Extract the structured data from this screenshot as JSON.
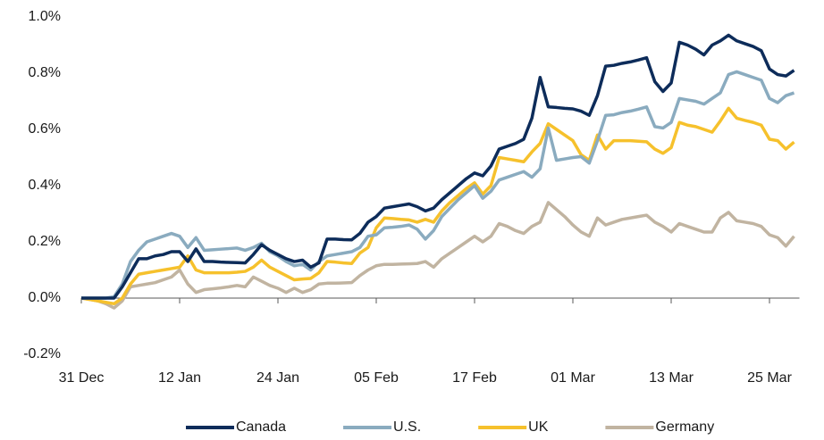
{
  "chart_data": {
    "type": "line",
    "categories": [
      "31 Dec",
      null,
      null,
      null,
      null,
      null,
      null,
      null,
      null,
      null,
      null,
      null,
      "12 Jan",
      null,
      null,
      null,
      null,
      null,
      null,
      null,
      null,
      null,
      null,
      null,
      "24 Jan",
      null,
      null,
      null,
      null,
      null,
      null,
      null,
      null,
      null,
      null,
      null,
      "05 Feb",
      null,
      null,
      null,
      null,
      null,
      null,
      null,
      null,
      null,
      null,
      null,
      "17 Feb",
      null,
      null,
      null,
      null,
      null,
      null,
      null,
      null,
      null,
      null,
      null,
      "01 Mar",
      null,
      null,
      null,
      null,
      null,
      null,
      null,
      null,
      null,
      null,
      null,
      "13 Mar",
      null,
      null,
      null,
      null,
      null,
      null,
      null,
      null,
      null,
      null,
      null,
      "25 Mar",
      null,
      null,
      null
    ],
    "series": [
      {
        "name": "Canada",
        "color": "#0d2c5a",
        "values": [
          0,
          0,
          0,
          0,
          0,
          0.04,
          0.09,
          0.14,
          0.14,
          0.15,
          0.155,
          0.165,
          0.165,
          0.13,
          0.175,
          0.13,
          0.13,
          0.128,
          0.127,
          0.126,
          0.125,
          0.155,
          0.19,
          0.17,
          0.155,
          0.14,
          0.13,
          0.135,
          0.11,
          0.125,
          0.21,
          0.21,
          0.208,
          0.207,
          0.23,
          0.27,
          0.29,
          0.32,
          0.325,
          0.33,
          0.335,
          0.325,
          0.31,
          0.32,
          0.35,
          0.375,
          0.4,
          0.425,
          0.445,
          0.435,
          0.47,
          0.53,
          0.54,
          0.55,
          0.565,
          0.64,
          0.785,
          0.68,
          0.678,
          0.675,
          0.673,
          0.665,
          0.65,
          0.72,
          0.825,
          0.828,
          0.835,
          0.84,
          0.847,
          0.855,
          0.77,
          0.735,
          0.765,
          0.91,
          0.9,
          0.885,
          0.865,
          0.9,
          0.915,
          0.935,
          0.915,
          0.905,
          0.895,
          0.88,
          0.815,
          0.795,
          0.79,
          0.81
        ]
      },
      {
        "name": "U.S.",
        "color": "#8aabbf",
        "values": [
          0,
          0,
          0,
          0,
          0.005,
          0.05,
          0.13,
          0.17,
          0.2,
          0.21,
          0.22,
          0.23,
          0.22,
          0.18,
          0.215,
          0.17,
          0.172,
          0.174,
          0.176,
          0.178,
          0.17,
          0.18,
          0.195,
          0.165,
          0.15,
          0.13,
          0.115,
          0.12,
          0.1,
          0.13,
          0.15,
          0.155,
          0.16,
          0.165,
          0.18,
          0.22,
          0.225,
          0.25,
          0.252,
          0.255,
          0.26,
          0.245,
          0.21,
          0.24,
          0.29,
          0.32,
          0.35,
          0.375,
          0.4,
          0.355,
          0.38,
          0.42,
          0.43,
          0.44,
          0.45,
          0.43,
          0.46,
          0.605,
          0.49,
          0.495,
          0.5,
          0.503,
          0.48,
          0.56,
          0.65,
          0.652,
          0.66,
          0.665,
          0.672,
          0.68,
          0.61,
          0.605,
          0.625,
          0.71,
          0.705,
          0.7,
          0.69,
          0.71,
          0.73,
          0.795,
          0.805,
          0.795,
          0.785,
          0.775,
          0.71,
          0.695,
          0.72,
          0.73
        ]
      },
      {
        "name": "UK",
        "color": "#f6c12c",
        "values": [
          0,
          -0.005,
          -0.01,
          -0.015,
          -0.02,
          0,
          0.05,
          0.085,
          0.09,
          0.095,
          0.1,
          0.105,
          0.11,
          0.15,
          0.1,
          0.09,
          0.09,
          0.09,
          0.09,
          0.092,
          0.095,
          0.11,
          0.135,
          0.11,
          0.095,
          0.08,
          0.065,
          0.068,
          0.07,
          0.09,
          0.13,
          0.128,
          0.125,
          0.123,
          0.16,
          0.18,
          0.25,
          0.285,
          0.283,
          0.28,
          0.278,
          0.27,
          0.28,
          0.27,
          0.31,
          0.34,
          0.365,
          0.39,
          0.41,
          0.37,
          0.4,
          0.5,
          0.495,
          0.49,
          0.485,
          0.52,
          0.55,
          0.62,
          0.6,
          0.58,
          0.56,
          0.51,
          0.49,
          0.58,
          0.53,
          0.56,
          0.56,
          0.56,
          0.558,
          0.556,
          0.53,
          0.515,
          0.535,
          0.625,
          0.615,
          0.61,
          0.6,
          0.59,
          0.63,
          0.675,
          0.64,
          0.632,
          0.625,
          0.615,
          0.565,
          0.56,
          0.53,
          0.555
        ]
      },
      {
        "name": "Germany",
        "color": "#c1b4a1",
        "values": [
          0,
          -0.005,
          -0.01,
          -0.02,
          -0.035,
          -0.01,
          0.04,
          0.045,
          0.05,
          0.055,
          0.065,
          0.075,
          0.1,
          0.05,
          0.02,
          0.03,
          0.033,
          0.036,
          0.04,
          0.045,
          0.04,
          0.075,
          0.06,
          0.045,
          0.035,
          0.02,
          0.035,
          0.02,
          0.03,
          0.05,
          0.053,
          0.053,
          0.054,
          0.055,
          0.08,
          0.1,
          0.115,
          0.12,
          0.12,
          0.121,
          0.122,
          0.123,
          0.13,
          0.11,
          0.14,
          0.16,
          0.18,
          0.2,
          0.22,
          0.2,
          0.22,
          0.265,
          0.255,
          0.24,
          0.23,
          0.255,
          0.27,
          0.34,
          0.315,
          0.29,
          0.26,
          0.235,
          0.22,
          0.285,
          0.26,
          0.27,
          0.28,
          0.285,
          0.29,
          0.295,
          0.27,
          0.255,
          0.235,
          0.265,
          0.255,
          0.245,
          0.235,
          0.235,
          0.285,
          0.305,
          0.275,
          0.27,
          0.265,
          0.255,
          0.225,
          0.215,
          0.185,
          0.22
        ]
      }
    ],
    "ylim": [
      -0.2,
      1.0
    ],
    "yticks": [
      {
        "value": -0.2,
        "label": "-0.2%"
      },
      {
        "value": 0,
        "label": "0.0%"
      },
      {
        "value": 0.2,
        "label": "0.2%"
      },
      {
        "value": 0.4,
        "label": "0.4%"
      },
      {
        "value": 0.6,
        "label": "0.6%"
      },
      {
        "value": 0.8,
        "label": "0.8%"
      },
      {
        "value": 1.0,
        "label": "1.0%"
      }
    ],
    "grid": false,
    "legend": "bottom"
  }
}
